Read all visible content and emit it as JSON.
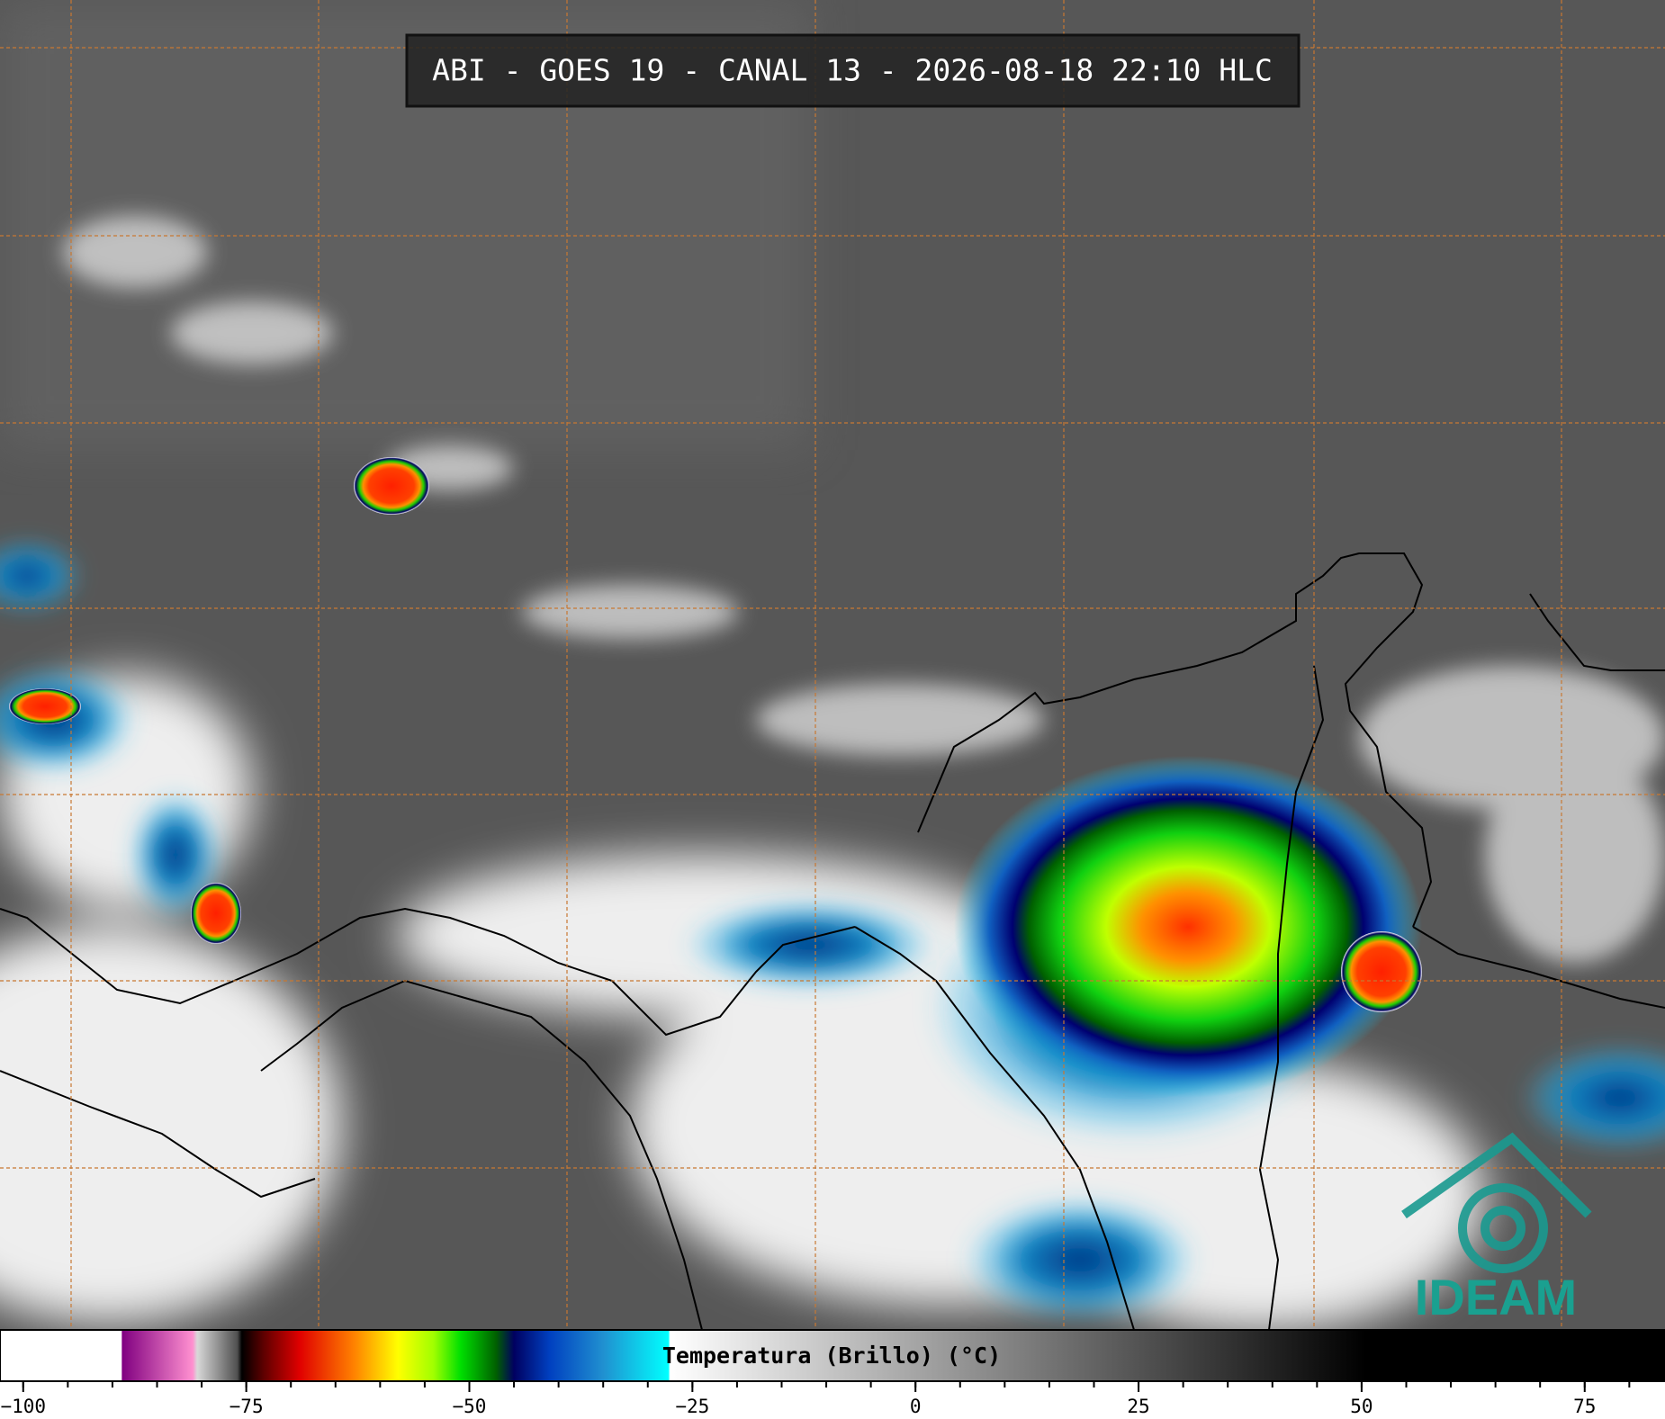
{
  "header": {
    "title": "ABI - GOES 19 - CANAL 13 - 2026-08-18 22:10 HLC"
  },
  "logo": {
    "text": "IDEAM"
  },
  "colorbar": {
    "label": "Temperatura (Brillo) (°C)",
    "lim": [
      -102.6,
      84
    ],
    "ticks": [
      {
        "value": -100,
        "label": "−100"
      },
      {
        "value": -75,
        "label": "−75"
      },
      {
        "value": -50,
        "label": "−50"
      },
      {
        "value": -25,
        "label": "−25"
      },
      0,
      25,
      50,
      75
    ],
    "minor_tick_step": 5,
    "stops": [
      {
        "value": -102.6,
        "color": "#ffffff"
      },
      {
        "value": -89,
        "color": "#ffffff"
      },
      {
        "value": -88.9,
        "color": "#800080"
      },
      {
        "value": -81,
        "color": "#ff90d0"
      },
      {
        "value": -80.5,
        "color": "#d8d8d8"
      },
      {
        "value": -76,
        "color": "#505050"
      },
      {
        "value": -75.5,
        "color": "#000000"
      },
      {
        "value": -73,
        "color": "#600000"
      },
      {
        "value": -69,
        "color": "#e00000"
      },
      {
        "value": -63,
        "color": "#ff8000"
      },
      {
        "value": -58,
        "color": "#ffff00"
      },
      {
        "value": -54,
        "color": "#a0ff00"
      },
      {
        "value": -51,
        "color": "#00e000"
      },
      {
        "value": -47,
        "color": "#006000"
      },
      {
        "value": -45,
        "color": "#000060"
      },
      {
        "value": -41,
        "color": "#0040c0"
      },
      {
        "value": -35,
        "color": "#2090d0"
      },
      {
        "value": -27.7,
        "color": "#00ffff"
      },
      {
        "value": -27.5,
        "color": "#ffffff"
      },
      {
        "value": 50.4,
        "color": "#000000"
      },
      {
        "value": 84,
        "color": "#000000"
      }
    ]
  }
}
